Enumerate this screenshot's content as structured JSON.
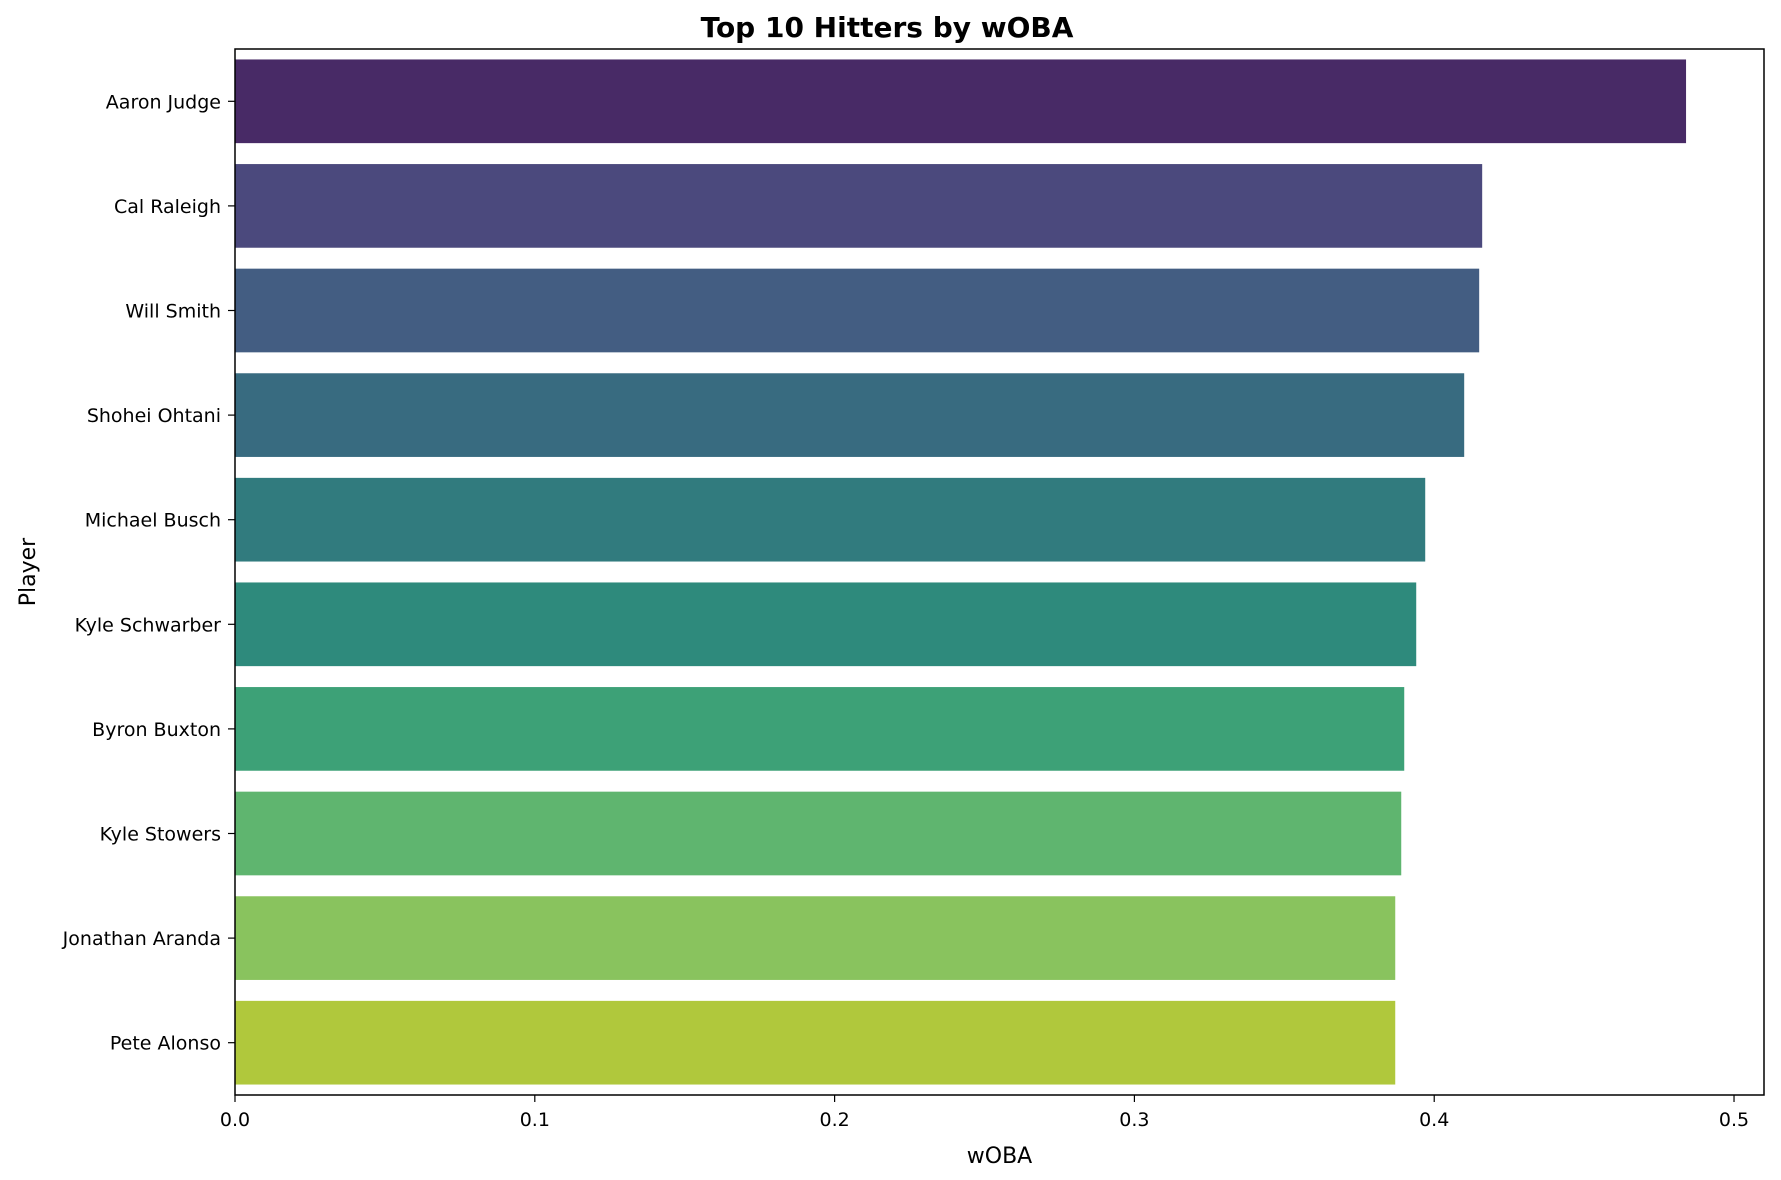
{
  "chart_data": {
    "type": "bar",
    "orientation": "horizontal",
    "title": "Top 10 Hitters by wOBA",
    "xlabel": "wOBA",
    "ylabel": "Player",
    "xlim": [
      0,
      0.51
    ],
    "xticks": [
      "0.0",
      "0.1",
      "0.2",
      "0.3",
      "0.4",
      "0.5"
    ],
    "xtick_values": [
      0.0,
      0.1,
      0.2,
      0.3,
      0.4,
      0.5
    ],
    "categories": [
      "Aaron Judge",
      "Cal Raleigh",
      "Will Smith",
      "Shohei Ohtani",
      "Michael Busch",
      "Kyle Schwarber",
      "Byron Buxton",
      "Kyle Stowers",
      "Jonathan Aranda",
      "Pete Alonso"
    ],
    "values": [
      0.484,
      0.416,
      0.415,
      0.41,
      0.397,
      0.394,
      0.39,
      0.389,
      0.387,
      0.387
    ],
    "colors": [
      "#482a66",
      "#4b497d",
      "#435d82",
      "#386b80",
      "#317b7e",
      "#2e8a7c",
      "#3da177",
      "#5fb56f",
      "#89c35e",
      "#b0c83c"
    ],
    "grid": false,
    "legend": "none"
  }
}
